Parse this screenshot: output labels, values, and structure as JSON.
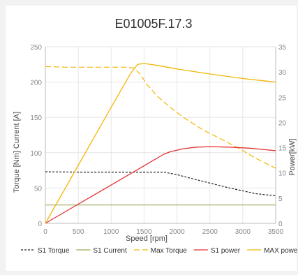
{
  "chart_data": {
    "type": "line",
    "title": "E01005F.17.3",
    "xlabel": "Speed  [rpm]",
    "ylabel_left": "Torque [Nm]  Current  [A]",
    "ylabel_right": "Power[kW]",
    "xlim": [
      0,
      3500
    ],
    "ylim_left": [
      0,
      250
    ],
    "ylim_right": [
      0,
      35
    ],
    "x_ticks": [
      0,
      500,
      1000,
      1500,
      2000,
      2500,
      3000,
      3500
    ],
    "y_ticks_left": [
      0,
      50,
      100,
      150,
      200,
      250
    ],
    "y_ticks_right": [
      0,
      5,
      10,
      15,
      20,
      25,
      30,
      35
    ],
    "grid": true,
    "legend_position": "bottom",
    "series": [
      {
        "name": "S1 Torque",
        "axis": "left",
        "color": "#222222",
        "dash": "3,2",
        "width": 1.2,
        "points": [
          [
            0,
            73
          ],
          [
            500,
            72.5
          ],
          [
            1000,
            72.5
          ],
          [
            1500,
            72.5
          ],
          [
            1800,
            72.5
          ],
          [
            2000,
            69
          ],
          [
            2200,
            64
          ],
          [
            2500,
            57
          ],
          [
            2800,
            50
          ],
          [
            3000,
            46
          ],
          [
            3200,
            42
          ],
          [
            3500,
            39
          ]
        ]
      },
      {
        "name": "S1 Current",
        "axis": "left",
        "color": "#9aaa55",
        "dash": "",
        "width": 1.2,
        "points": [
          [
            0,
            26
          ],
          [
            3500,
            26
          ]
        ]
      },
      {
        "name": "Max Torque",
        "axis": "left",
        "color": "#f2b705",
        "dash": "8,4",
        "width": 1.2,
        "points": [
          [
            0,
            222
          ],
          [
            300,
            221
          ],
          [
            800,
            221
          ],
          [
            1200,
            221
          ],
          [
            1350,
            220
          ],
          [
            1450,
            210
          ],
          [
            1550,
            196
          ],
          [
            1700,
            180
          ],
          [
            1900,
            164
          ],
          [
            2100,
            150
          ],
          [
            2400,
            132
          ],
          [
            2700,
            118
          ],
          [
            3000,
            103
          ],
          [
            3200,
            92
          ],
          [
            3500,
            78
          ]
        ]
      },
      {
        "name": "S1 power",
        "axis": "right",
        "color": "#e53030",
        "dash": "",
        "width": 1.3,
        "points": [
          [
            0,
            0
          ],
          [
            500,
            3.8
          ],
          [
            1000,
            7.6
          ],
          [
            1500,
            11.4
          ],
          [
            1800,
            13.7
          ],
          [
            1900,
            14.2
          ],
          [
            2100,
            14.8
          ],
          [
            2300,
            15.1
          ],
          [
            2500,
            15.2
          ],
          [
            2800,
            15.1
          ],
          [
            3100,
            14.9
          ],
          [
            3500,
            14.4
          ]
        ]
      },
      {
        "name": "MAX power",
        "axis": "right",
        "color": "#f2b705",
        "dash": "",
        "width": 1.3,
        "points": [
          [
            0,
            0
          ],
          [
            500,
            11.5
          ],
          [
            1000,
            23
          ],
          [
            1300,
            29.8
          ],
          [
            1400,
            31.5
          ],
          [
            1500,
            31.7
          ],
          [
            1700,
            31.3
          ],
          [
            2000,
            30.6
          ],
          [
            2500,
            29.6
          ],
          [
            3000,
            28.7
          ],
          [
            3500,
            28.0
          ]
        ]
      }
    ]
  }
}
